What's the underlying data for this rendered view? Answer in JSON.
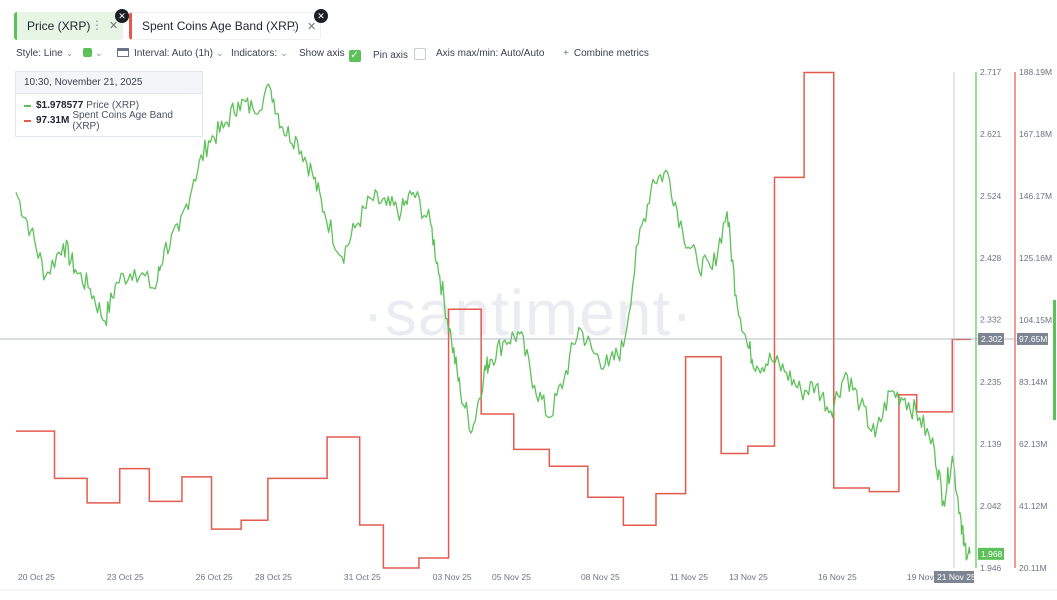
{
  "tabs": [
    {
      "label": "Price (XRP)",
      "color": "#5dc159"
    },
    {
      "label": "Spent Coins Age Band (XRP)",
      "color": "#e35a4e"
    }
  ],
  "toolbar": {
    "style": "Style: Line",
    "interval": "Interval: Auto (1h)",
    "indicators": "Indicators:",
    "show_axis": "Show axis",
    "pin_axis": "Pin axis",
    "axis_maxmin": "Axis max/min: Auto/Auto",
    "combine": "Combine metrics"
  },
  "tooltip": {
    "timestamp": "10:30, November 21, 2025",
    "rows": [
      {
        "value": "$1.978577",
        "label": "Price (XRP)",
        "color": "#5dc159"
      },
      {
        "value": "97.31M",
        "label": "Spent Coins Age Band (XRP)",
        "color": "#e35a4e"
      }
    ]
  },
  "watermark": "·santiment·",
  "chart_data": {
    "type": "line",
    "x_labels": [
      "20 Oct 25",
      "23 Oct 25",
      "26 Oct 25",
      "28 Oct 25",
      "31 Oct 25",
      "03 Nov 25",
      "05 Nov 25",
      "08 Nov 25",
      "11 Nov 25",
      "13 Nov 25",
      "16 Nov 25",
      "19 Nov 25",
      "21 Nov 25"
    ],
    "x_range": [
      "2025-10-20",
      "2025-11-21"
    ],
    "price_axis": {
      "ticks": [
        2.717,
        2.621,
        2.524,
        2.428,
        2.332,
        2.235,
        2.139,
        2.042,
        1.946
      ],
      "min": 1.946,
      "max": 2.717,
      "color": "#5dc159"
    },
    "spent_axis": {
      "ticks": [
        "188.19M",
        "167.18M",
        "146.17M",
        "125.16M",
        "104.15M",
        "83.14M",
        "62.13M",
        "41.12M",
        "20.11M"
      ],
      "min": 20.11,
      "max": 188.19,
      "unit": "M",
      "color": "#e35a4e"
    },
    "crosshair": {
      "price_label": "2.302",
      "spent_label": "97.65M",
      "date_label": "21 Nov 25",
      "last_price_label": "1.968"
    },
    "series": [
      {
        "name": "Price (XRP)",
        "color": "#5dc159",
        "points": [
          [
            "2025-10-20",
            2.53
          ],
          [
            "2025-10-20.5",
            2.47
          ],
          [
            "2025-10-21",
            2.4
          ],
          [
            "2025-10-21.6",
            2.45
          ],
          [
            "2025-10-22",
            2.41
          ],
          [
            "2025-10-22.5",
            2.38
          ],
          [
            "2025-10-23",
            2.33
          ],
          [
            "2025-10-23.4",
            2.39
          ],
          [
            "2025-10-24",
            2.41
          ],
          [
            "2025-10-24.7",
            2.38
          ],
          [
            "2025-10-25",
            2.44
          ],
          [
            "2025-10-25.5",
            2.47
          ],
          [
            "2025-10-26",
            2.55
          ],
          [
            "2025-10-26.5",
            2.61
          ],
          [
            "2025-10-27",
            2.63
          ],
          [
            "2025-10-27.5",
            2.67
          ],
          [
            "2025-10-28",
            2.66
          ],
          [
            "2025-10-28.6",
            2.69
          ],
          [
            "2025-10-29",
            2.63
          ],
          [
            "2025-10-29.5",
            2.61
          ],
          [
            "2025-10-30",
            2.56
          ],
          [
            "2025-10-30.4",
            2.5
          ],
          [
            "2025-10-31",
            2.43
          ],
          [
            "2025-10-31.5",
            2.48
          ],
          [
            "2025-11-01",
            2.52
          ],
          [
            "2025-11-01.5",
            2.51
          ],
          [
            "2025-11-02",
            2.5
          ],
          [
            "2025-11-02.4",
            2.53
          ],
          [
            "2025-11-03",
            2.48
          ],
          [
            "2025-11-03.3",
            2.4
          ],
          [
            "2025-11-03.7",
            2.3
          ],
          [
            "2025-11-04",
            2.22
          ],
          [
            "2025-11-04.4",
            2.16
          ],
          [
            "2025-11-04.8",
            2.25
          ],
          [
            "2025-11-05",
            2.27
          ],
          [
            "2025-11-05.5",
            2.3
          ],
          [
            "2025-11-06",
            2.31
          ],
          [
            "2025-11-06.5",
            2.23
          ],
          [
            "2025-11-07",
            2.18
          ],
          [
            "2025-11-07.5",
            2.24
          ],
          [
            "2025-11-08",
            2.32
          ],
          [
            "2025-11-08.5",
            2.28
          ],
          [
            "2025-11-09",
            2.26
          ],
          [
            "2025-11-09.5",
            2.29
          ],
          [
            "2025-11-10",
            2.45
          ],
          [
            "2025-11-10.5",
            2.55
          ],
          [
            "2025-11-11",
            2.56
          ],
          [
            "2025-11-11.5",
            2.47
          ],
          [
            "2025-11-12",
            2.42
          ],
          [
            "2025-11-12.5",
            2.41
          ],
          [
            "2025-11-13",
            2.5
          ],
          [
            "2025-11-13.3",
            2.37
          ],
          [
            "2025-11-13.7",
            2.29
          ],
          [
            "2025-11-14",
            2.26
          ],
          [
            "2025-11-14.5",
            2.27
          ],
          [
            "2025-11-15",
            2.25
          ],
          [
            "2025-11-15.5",
            2.22
          ],
          [
            "2025-11-16",
            2.23
          ],
          [
            "2025-11-16.5",
            2.19
          ],
          [
            "2025-11-17",
            2.25
          ],
          [
            "2025-11-17.5",
            2.2
          ],
          [
            "2025-11-18",
            2.15
          ],
          [
            "2025-11-18.5",
            2.22
          ],
          [
            "2025-11-19",
            2.21
          ],
          [
            "2025-11-19.5",
            2.18
          ],
          [
            "2025-11-20",
            2.13
          ],
          [
            "2025-11-20.3",
            2.05
          ],
          [
            "2025-11-20.6",
            2.12
          ],
          [
            "2025-11-20.9",
            2.02
          ],
          [
            "2025-11-21",
            1.98
          ],
          [
            "2025-11-21.2",
            1.968
          ]
        ]
      },
      {
        "name": "Spent Coins Age Band (XRP)",
        "color": "#e35a4e",
        "steps": [
          [
            "2025-10-20",
            66.5
          ],
          [
            "2025-10-21.3",
            50.5
          ],
          [
            "2025-10-22.4",
            42.2
          ],
          [
            "2025-10-23.5",
            53.8
          ],
          [
            "2025-10-24.5",
            42.7
          ],
          [
            "2025-10-25.6",
            51.0
          ],
          [
            "2025-10-26.6",
            33.3
          ],
          [
            "2025-10-27.6",
            36.3
          ],
          [
            "2025-10-28.5",
            50.5
          ],
          [
            "2025-10-30.5",
            64.5
          ],
          [
            "2025-10-31.6",
            34.7
          ],
          [
            "2025-11-01.4",
            20.1
          ],
          [
            "2025-11-02.6",
            23.5
          ],
          [
            "2025-11-03.6",
            107.8
          ],
          [
            "2025-11-04.7",
            72.3
          ],
          [
            "2025-11-05.8",
            60.3
          ],
          [
            "2025-11-07",
            54.6
          ],
          [
            "2025-11-08.3",
            44.1
          ],
          [
            "2025-11-09.5",
            34.6
          ],
          [
            "2025-11-10.6",
            45.3
          ],
          [
            "2025-11-11.6",
            91.7
          ],
          [
            "2025-11-12.8",
            58.9
          ],
          [
            "2025-11-13.7",
            61.4
          ],
          [
            "2025-11-14.6",
            152.5
          ],
          [
            "2025-11-15.6",
            188.0
          ],
          [
            "2025-11-16.6",
            47.2
          ],
          [
            "2025-11-17.8",
            46.0
          ],
          [
            "2025-11-18.8",
            78.8
          ],
          [
            "2025-11-19.4",
            73.0
          ],
          [
            "2025-11-20.6",
            97.6
          ],
          [
            "2025-11-21.2",
            97.3
          ]
        ]
      }
    ],
    "grid": false,
    "legend": "top-left"
  }
}
